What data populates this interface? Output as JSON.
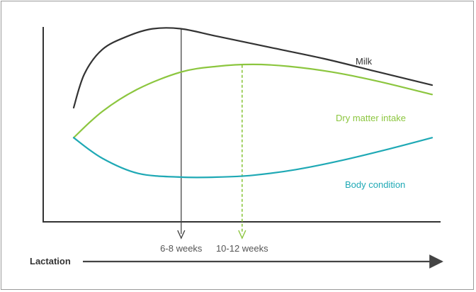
{
  "chart_data": {
    "type": "line",
    "title": "",
    "xlabel": "Lactation",
    "ylabel": "",
    "grid": false,
    "legend": "inline labels at right end of each curve",
    "x_range": [
      0,
      100
    ],
    "y_range": [
      0,
      100
    ],
    "series": [
      {
        "name": "Milk",
        "color": "#333333",
        "x": [
          0,
          3,
          8,
          15,
          22,
          30,
          40,
          55,
          70,
          85,
          100
        ],
        "y": [
          54,
          72,
          85,
          92,
          96,
          96,
          92,
          86,
          80,
          73,
          66
        ]
      },
      {
        "name": "Dry matter intake",
        "color": "#8cc63f",
        "x": [
          0,
          8,
          18,
          30,
          40,
          50,
          60,
          72,
          85,
          100
        ],
        "y": [
          38,
          52,
          64,
          73,
          76,
          77,
          76,
          73,
          68,
          61
        ]
      },
      {
        "name": "Body condition",
        "color": "#1fa9b5",
        "x": [
          0,
          8,
          18,
          30,
          40,
          50,
          62,
          75,
          88,
          100
        ],
        "y": [
          38,
          27,
          19,
          17,
          17,
          18,
          21,
          26,
          32,
          38
        ]
      }
    ],
    "markers": [
      {
        "label": "6-8 weeks",
        "x": 30,
        "style": "solid",
        "color": "#444444",
        "from_series": "Milk"
      },
      {
        "label": "10-12 weeks",
        "x": 47,
        "style": "dashed",
        "color": "#8cc63f",
        "from_series": "Dry matter intake"
      }
    ]
  },
  "colors": {
    "axis": "#333333",
    "frame": "#9a9a9a"
  }
}
